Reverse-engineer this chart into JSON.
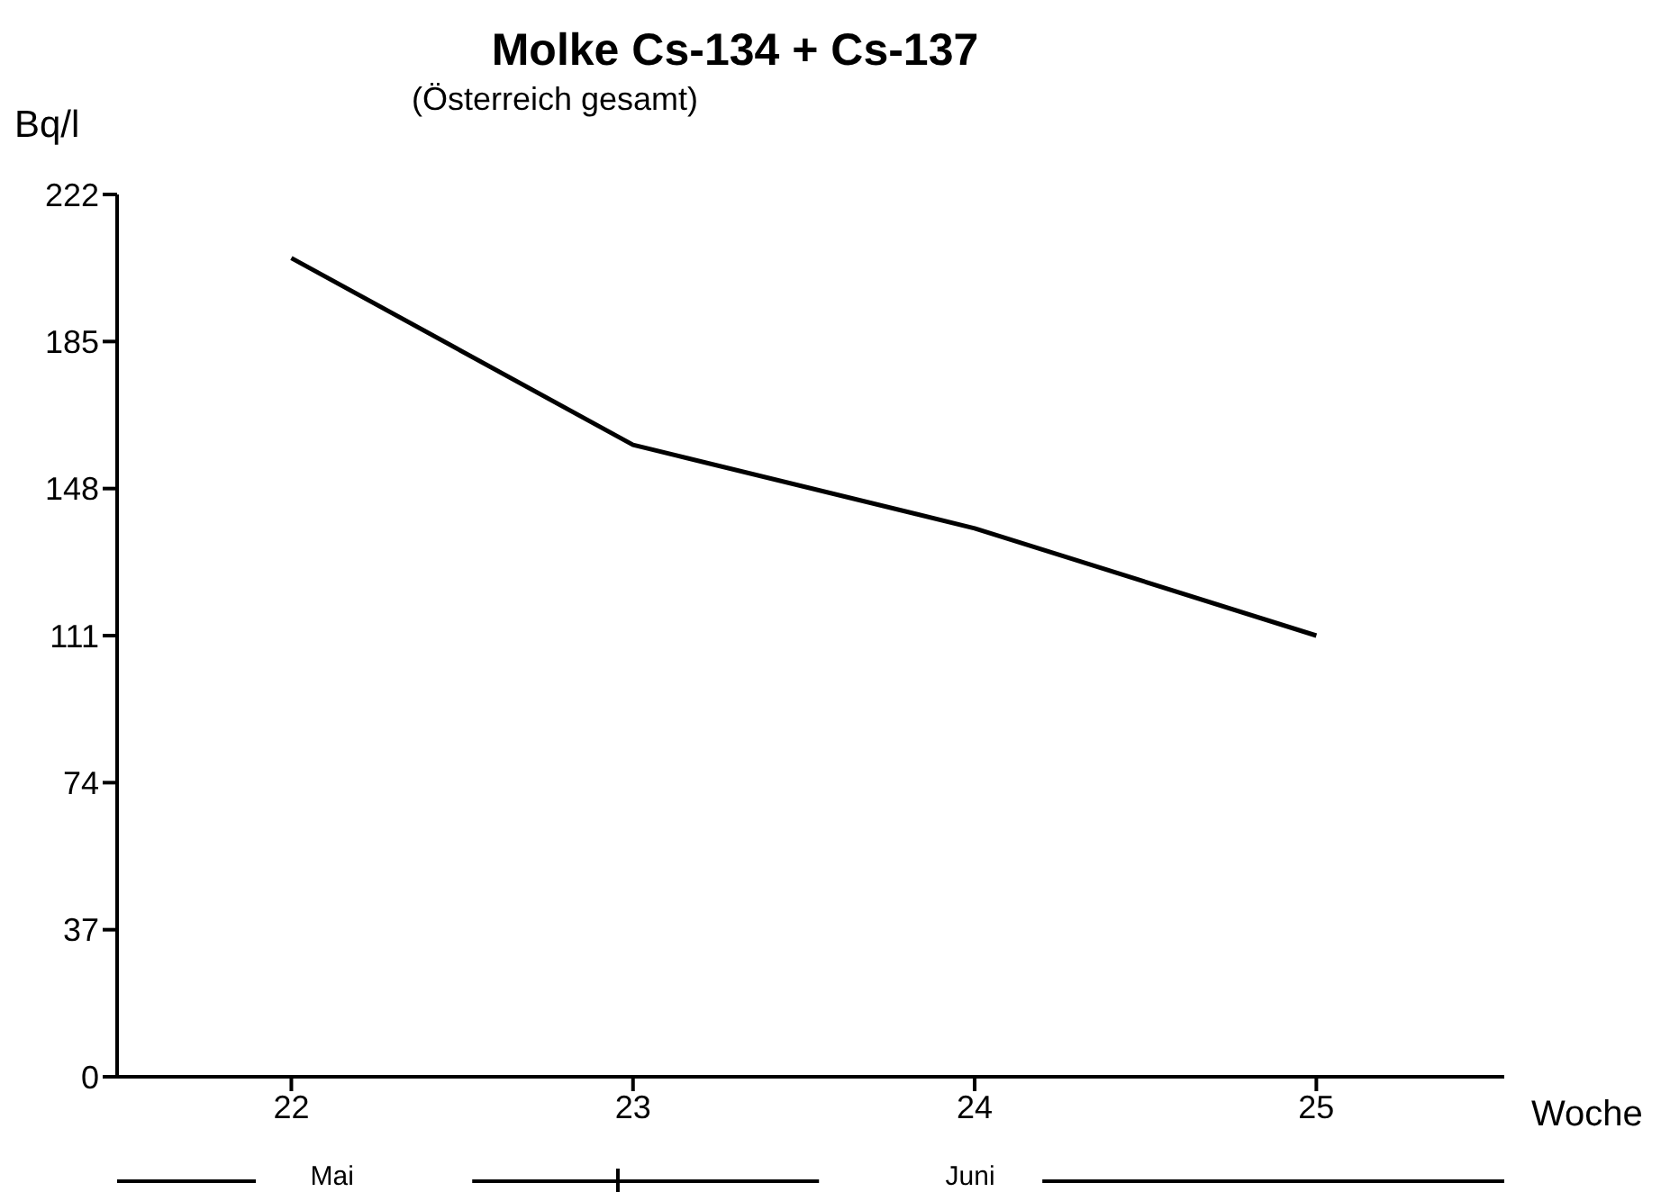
{
  "chart_data": {
    "type": "line",
    "title": "Molke Cs-134 + Cs-137",
    "subtitle": "(Österreich gesamt)",
    "xlabel": "Woche",
    "ylabel": "Bq/l",
    "x": [
      22,
      23,
      24,
      25
    ],
    "series": [
      {
        "color": "#000000",
        "values": [
          206,
          159,
          138,
          111
        ]
      }
    ],
    "xlim": [
      21.49,
      25.55
    ],
    "xticks": [
      22,
      23,
      24,
      25
    ],
    "ylim": [
      0,
      222
    ],
    "yticks": [
      0,
      37,
      74,
      111,
      148,
      185,
      222
    ],
    "marker": "none",
    "line_style": "solid",
    "annotations": [
      "Mai",
      "Juni"
    ]
  }
}
